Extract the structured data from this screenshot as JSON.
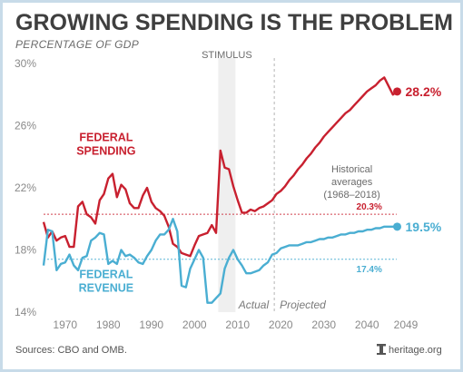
{
  "colors": {
    "spending": "#c8202f",
    "revenue": "#4aaed2",
    "axis_text": "#8a8a8a",
    "stimulus_band": "#efefef"
  },
  "chart_data": {
    "type": "line",
    "title": "GROWING SPENDING IS THE PROBLEM",
    "ylabel": "PERCENTAGE OF GDP",
    "xlabel": "",
    "xlim": [
      1965,
      2049
    ],
    "ylim": [
      14,
      30
    ],
    "grid": false,
    "x_ticks": [
      1970,
      1980,
      1990,
      2000,
      2010,
      2020,
      2030,
      2040,
      2049
    ],
    "y_ticks": [
      {
        "value": 14,
        "label": "14%"
      },
      {
        "value": 18,
        "label": "18%"
      },
      {
        "value": 22,
        "label": "22%"
      },
      {
        "value": 26,
        "label": "26%"
      },
      {
        "value": 30,
        "label": "30%"
      }
    ],
    "series": [
      {
        "name": "FEDERAL SPENDING",
        "color": "#c8202f",
        "x": [
          1965,
          1966,
          1967,
          1968,
          1969,
          1970,
          1971,
          1972,
          1973,
          1974,
          1975,
          1976,
          1977,
          1978,
          1979,
          1980,
          1981,
          1982,
          1983,
          1984,
          1985,
          1986,
          1987,
          1988,
          1989,
          1990,
          1991,
          1992,
          1993,
          1994,
          1995,
          1996,
          1997,
          1998,
          1999,
          2000,
          2001,
          2002,
          2003,
          2004,
          2005,
          2006,
          2007,
          2008,
          2009,
          2010,
          2011,
          2012,
          2013,
          2014,
          2015,
          2016,
          2017,
          2018,
          2019,
          2020,
          2021,
          2022,
          2023,
          2024,
          2025,
          2026,
          2027,
          2028,
          2029,
          2030,
          2031,
          2032,
          2033,
          2034,
          2035,
          2036,
          2037,
          2038,
          2039,
          2040,
          2041,
          2042,
          2043,
          2044,
          2045,
          2046,
          2047
        ],
        "values": [
          19.8,
          18.8,
          19.2,
          18.6,
          18.8,
          18.9,
          18.2,
          18.2,
          20.8,
          21.1,
          20.3,
          20.1,
          19.7,
          21.2,
          21.6,
          22.6,
          22.9,
          21.4,
          22.2,
          21.9,
          21.0,
          20.7,
          20.7,
          21.5,
          22.0,
          21.1,
          20.7,
          20.5,
          20.2,
          19.5,
          18.4,
          18.2,
          17.8,
          17.7,
          17.6,
          18.3,
          18.9,
          19.0,
          19.1,
          19.6,
          19.1,
          24.4,
          23.3,
          23.2,
          22.1,
          21.2,
          20.4,
          20.4,
          20.6,
          20.5,
          20.7,
          20.8,
          21.0,
          21.2,
          21.6,
          21.8,
          22.1,
          22.5,
          22.8,
          23.2,
          23.5,
          23.9,
          24.2,
          24.6,
          24.9,
          25.3,
          25.6,
          25.9,
          26.2,
          26.5,
          26.8,
          27.0,
          27.3,
          27.6,
          27.9,
          28.2,
          28.4,
          28.6,
          28.9,
          29.1,
          29.4,
          29.8,
          28.2
        ]
      },
      {
        "name": "FEDERAL REVENUE",
        "color": "#4aaed2",
        "x": [
          1965,
          1966,
          1967,
          1968,
          1969,
          1970,
          1971,
          1972,
          1973,
          1974,
          1975,
          1976,
          1977,
          1978,
          1979,
          1980,
          1981,
          1982,
          1983,
          1984,
          1985,
          1986,
          1987,
          1988,
          1989,
          1990,
          1991,
          1992,
          1993,
          1994,
          1995,
          1996,
          1997,
          1998,
          1999,
          2000,
          2001,
          2002,
          2003,
          2004,
          2005,
          2006,
          2007,
          2008,
          2009,
          2010,
          2011,
          2012,
          2013,
          2014,
          2015,
          2016,
          2017,
          2018,
          2019,
          2020,
          2021,
          2022,
          2023,
          2024,
          2025,
          2026,
          2027,
          2028,
          2029,
          2030,
          2031,
          2032,
          2033,
          2034,
          2035,
          2036,
          2037,
          2038,
          2039,
          2040,
          2041,
          2042,
          2043,
          2044,
          2045,
          2046,
          2047
        ],
        "values": [
          17.0,
          19.3,
          19.2,
          16.7,
          17.1,
          17.2,
          17.7,
          17.0,
          16.7,
          17.5,
          17.6,
          18.6,
          18.8,
          19.1,
          19.0,
          17.1,
          17.3,
          17.1,
          18.0,
          17.6,
          17.7,
          17.5,
          17.2,
          17.1,
          17.6,
          18.0,
          18.6,
          19.0,
          19.0,
          19.3,
          20.0,
          19.2,
          15.7,
          15.6,
          16.8,
          17.4,
          18.0,
          17.5,
          14.6,
          14.6,
          14.9,
          15.2,
          16.8,
          17.5,
          18.0,
          17.4,
          17.0,
          16.5,
          16.5,
          16.6,
          16.7,
          17.0,
          17.2,
          17.7,
          17.8,
          18.1,
          18.2,
          18.3,
          18.3,
          18.3,
          18.4,
          18.5,
          18.5,
          18.6,
          18.7,
          18.7,
          18.8,
          18.8,
          18.9,
          19.0,
          19.0,
          19.1,
          19.1,
          19.2,
          19.2,
          19.3,
          19.3,
          19.4,
          19.4,
          19.5,
          19.5,
          19.5,
          19.5
        ]
      }
    ],
    "reference_lines": [
      {
        "series": "FEDERAL SPENDING",
        "value": 20.3,
        "label": "20.3%"
      },
      {
        "series": "FEDERAL REVENUE",
        "value": 17.4,
        "label": "17.4%"
      }
    ],
    "end_labels": [
      {
        "series": "FEDERAL SPENDING",
        "x": 2047,
        "value": 28.2,
        "label": "28.2%"
      },
      {
        "series": "FEDERAL REVENUE",
        "x": 2047,
        "value": 19.5,
        "label": "19.5%"
      }
    ],
    "stimulus_band": {
      "label": "STIMULUS",
      "x_start": 2005.5,
      "x_end": 2009.5
    },
    "divider_x": 2018.5,
    "phase_labels": {
      "actual": "Actual",
      "projected": "Projected"
    },
    "historical_note": [
      "Historical",
      "averages",
      "(1968–2018)"
    ],
    "series_labels": {
      "spending": [
        "FEDERAL",
        "SPENDING"
      ],
      "revenue": [
        "FEDERAL",
        "REVENUE"
      ]
    }
  },
  "footer": {
    "source": "Sources: CBO and OMB.",
    "brand": "heritage.org"
  }
}
